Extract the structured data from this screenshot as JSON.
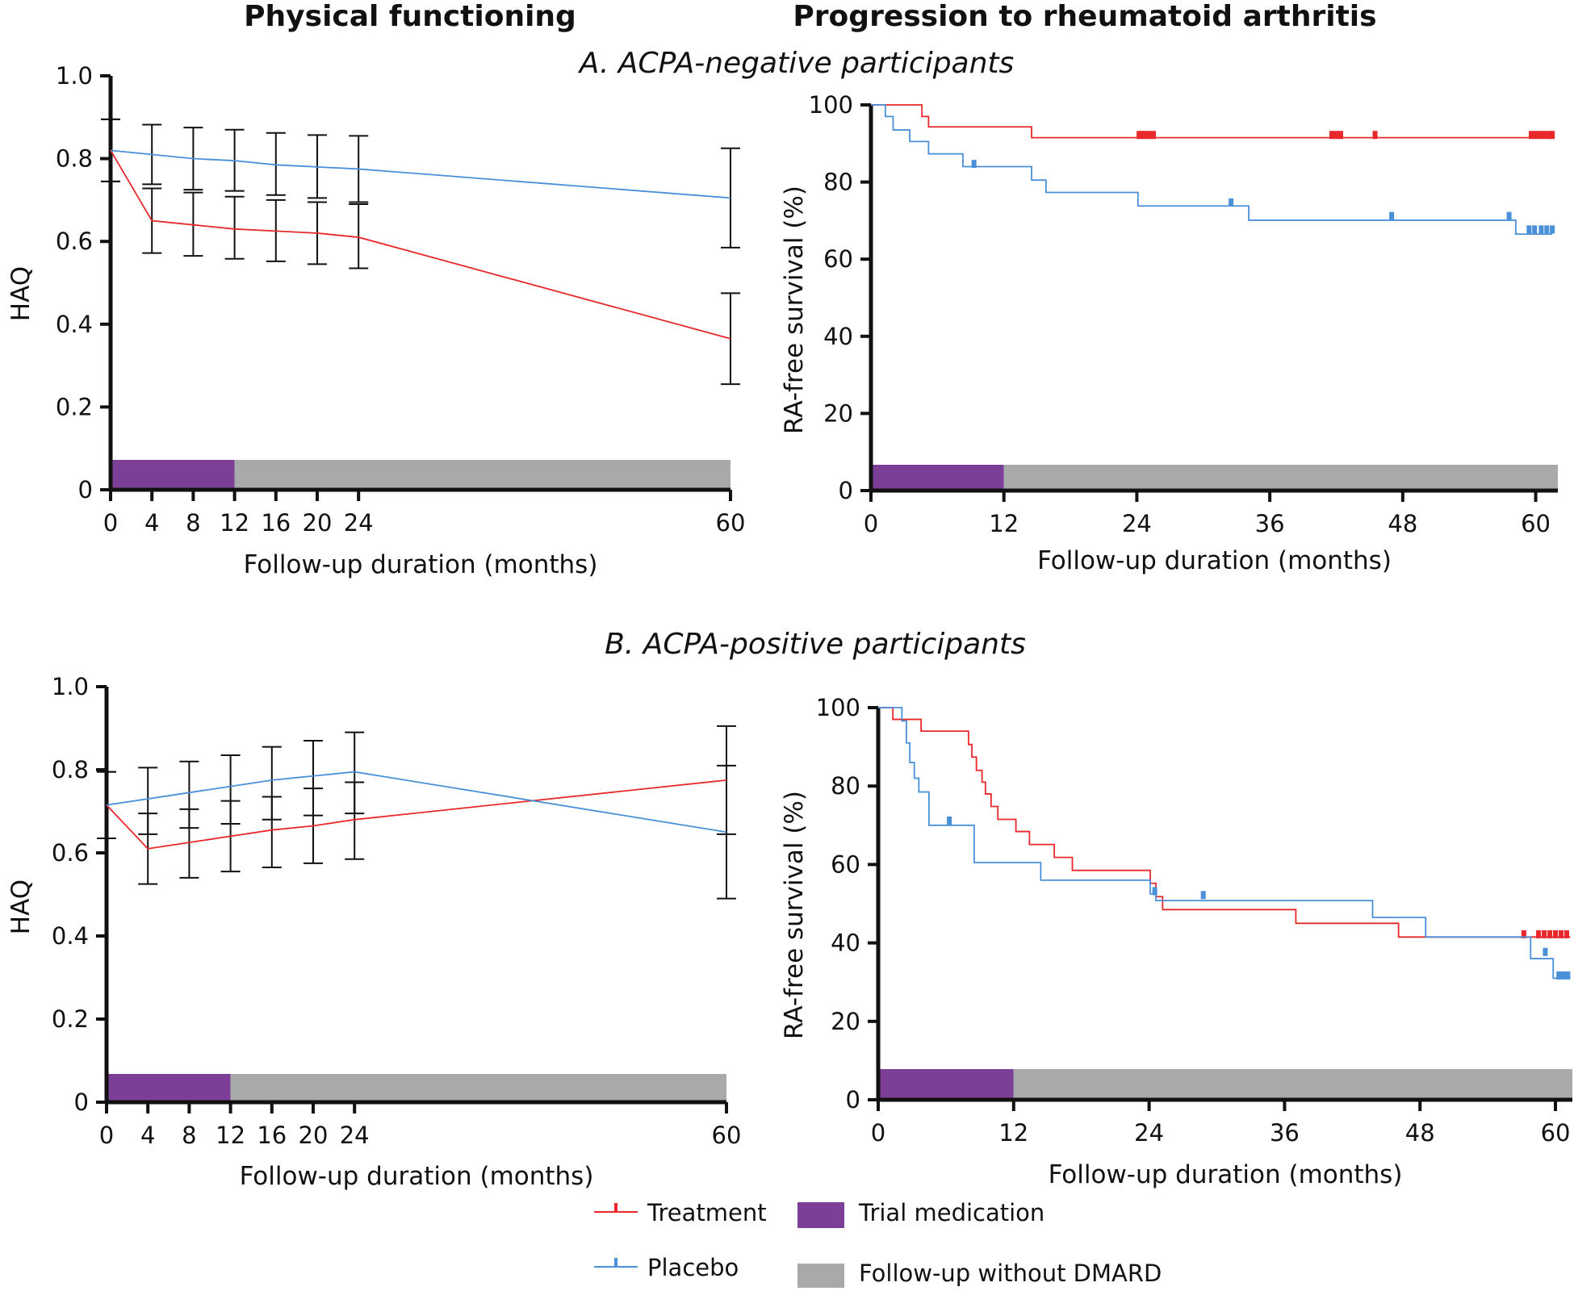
{
  "figure": {
    "col_titles": [
      "Physical functioning",
      "Progression to rheumatoid arthritis"
    ],
    "section_titles": [
      "A. ACPA-negative participants",
      "B. ACPA-positive participants"
    ]
  },
  "colors": {
    "treatment": "#e8282b",
    "placebo": "#4a90d9",
    "trial": "#7b3f98",
    "followup": "#a7a9aa",
    "axis": "#111111"
  },
  "legend": {
    "treatment": "Treatment",
    "placebo": "Placebo",
    "trial": "Trial medication",
    "followup": "Follow-up without DMARD"
  },
  "chart_data": [
    {
      "id": "haq-neg",
      "type": "line",
      "title": "Physical functioning",
      "section": "A. ACPA-negative participants",
      "xlabel": "Follow-up duration (months)",
      "ylabel": "HAQ",
      "xlim": [
        0,
        60
      ],
      "ylim": [
        0,
        1.0
      ],
      "x_ticks": [
        0,
        4,
        8,
        12,
        16,
        20,
        24,
        60
      ],
      "x_tick_labels": [
        "0",
        "4",
        "8",
        "12",
        "16",
        "20",
        "24",
        "60"
      ],
      "y_ticks": [
        0,
        0.2,
        0.4,
        0.6,
        0.8,
        1.0
      ],
      "y_tick_labels": [
        "0",
        "0.2",
        "0.4",
        "0.6",
        "0.8",
        "1.0"
      ],
      "x": [
        0,
        4,
        8,
        12,
        16,
        20,
        24,
        60
      ],
      "series": [
        {
          "name": "Treatment",
          "color_key": "treatment",
          "values": [
            0.82,
            0.65,
            0.64,
            0.63,
            0.625,
            0.62,
            0.61,
            0.365
          ],
          "lower": [
            0.745,
            0.572,
            0.565,
            0.558,
            0.552,
            0.545,
            0.535,
            0.255
          ],
          "upper": [
            0.895,
            0.728,
            0.718,
            0.708,
            0.7,
            0.695,
            0.69,
            0.475
          ]
        },
        {
          "name": "Placebo",
          "color_key": "placebo",
          "values": [
            0.82,
            0.81,
            0.8,
            0.795,
            0.785,
            0.78,
            0.775,
            0.705
          ],
          "lower": [
            0.745,
            0.738,
            0.725,
            0.722,
            0.712,
            0.705,
            0.695,
            0.585
          ],
          "upper": [
            0.895,
            0.882,
            0.875,
            0.87,
            0.862,
            0.857,
            0.855,
            0.825
          ]
        }
      ],
      "bars": {
        "trial": [
          0,
          12
        ],
        "followup": [
          12,
          60
        ]
      }
    },
    {
      "id": "km-neg",
      "type": "line",
      "step": true,
      "title": "Progression to rheumatoid arthritis",
      "section": "A. ACPA-negative participants",
      "xlabel": "Follow-up duration (months)",
      "ylabel": "RA-free survival (%)",
      "xlim": [
        0,
        62
      ],
      "ylim": [
        0,
        100
      ],
      "x_ticks": [
        0,
        12,
        24,
        36,
        48,
        60
      ],
      "x_tick_labels": [
        "0",
        "12",
        "24",
        "36",
        "48",
        "60"
      ],
      "y_ticks": [
        0,
        20,
        40,
        60,
        80,
        100
      ],
      "y_tick_labels": [
        "0",
        "20",
        "40",
        "60",
        "80",
        "100"
      ],
      "series": [
        {
          "name": "Treatment",
          "color_key": "treatment",
          "x": [
            0,
            4.6,
            5.2,
            14.5,
            61.5
          ],
          "y": [
            100,
            97,
            94.3,
            91.5,
            91.5
          ],
          "censored_x": [
            24.2,
            24.5,
            24.8,
            25.1,
            25.5,
            41.6,
            42,
            42.4,
            45.5,
            59.6,
            60,
            60.4,
            60.8,
            61.2,
            61.5
          ],
          "censored_y": [
            92,
            92,
            92,
            92,
            92,
            92,
            92,
            92,
            92,
            92,
            92,
            92,
            92,
            92,
            92
          ]
        },
        {
          "name": "Placebo",
          "color_key": "placebo",
          "x": [
            0,
            1.3,
            2,
            3.5,
            5.2,
            8.3,
            10.4,
            14.5,
            15.8,
            24.1,
            34.1,
            58.2,
            61.5
          ],
          "y": [
            100,
            97,
            93.5,
            90.5,
            87.3,
            84,
            84,
            80.5,
            77.3,
            73.8,
            70.1,
            66.5,
            66.5
          ],
          "censored_x": [
            9.3,
            32.5,
            47,
            57.6,
            59.4,
            59.9,
            60.5,
            61,
            61.5
          ],
          "censored_y": [
            84.5,
            74.5,
            71,
            71,
            67.5,
            67.5,
            67.5,
            67.5,
            67.5
          ]
        }
      ],
      "bars": {
        "trial": [
          0,
          12
        ],
        "followup": [
          12,
          62
        ]
      }
    },
    {
      "id": "haq-pos",
      "type": "line",
      "title": "Physical functioning",
      "section": "B. ACPA-positive participants",
      "xlabel": "Follow-up duration (months)",
      "ylabel": "HAQ",
      "xlim": [
        0,
        60
      ],
      "ylim": [
        0,
        1.0
      ],
      "x_ticks": [
        0,
        4,
        8,
        12,
        16,
        20,
        24,
        60
      ],
      "x_tick_labels": [
        "0",
        "4",
        "8",
        "12",
        "16",
        "20",
        "24",
        "60"
      ],
      "y_ticks": [
        0,
        0.2,
        0.4,
        0.6,
        0.8,
        1.0
      ],
      "y_tick_labels": [
        "0",
        "0.2",
        "0.4",
        "0.6",
        "0.8",
        "1.0"
      ],
      "x": [
        0,
        4,
        8,
        12,
        16,
        20,
        24,
        60
      ],
      "series": [
        {
          "name": "Treatment",
          "color_key": "treatment",
          "values": [
            0.715,
            0.61,
            0.625,
            0.64,
            0.655,
            0.665,
            0.68,
            0.775
          ],
          "lower": [
            0.635,
            0.525,
            0.54,
            0.555,
            0.565,
            0.575,
            0.585,
            0.645
          ],
          "upper": [
            0.795,
            0.695,
            0.705,
            0.725,
            0.735,
            0.755,
            0.77,
            0.905
          ]
        },
        {
          "name": "Placebo",
          "color_key": "placebo",
          "values": [
            0.715,
            0.73,
            0.745,
            0.76,
            0.775,
            0.785,
            0.795,
            0.65
          ],
          "lower": [
            0.635,
            0.645,
            0.66,
            0.67,
            0.68,
            0.69,
            0.695,
            0.49
          ],
          "upper": [
            0.795,
            0.805,
            0.82,
            0.835,
            0.855,
            0.87,
            0.89,
            0.81
          ]
        }
      ],
      "bars": {
        "trial": [
          0,
          12
        ],
        "followup": [
          12,
          60
        ]
      }
    },
    {
      "id": "km-pos",
      "type": "line",
      "step": true,
      "title": "Progression to rheumatoid arthritis",
      "section": "B. ACPA-positive participants",
      "xlabel": "Follow-up duration (months)",
      "ylabel": "RA-free survival (%)",
      "xlim": [
        0,
        61.5
      ],
      "ylim": [
        0,
        100
      ],
      "x_ticks": [
        0,
        12,
        24,
        36,
        48,
        60
      ],
      "x_tick_labels": [
        "0",
        "12",
        "24",
        "36",
        "48",
        "60"
      ],
      "y_ticks": [
        0,
        20,
        40,
        60,
        80,
        100
      ],
      "y_tick_labels": [
        "0",
        "20",
        "40",
        "60",
        "80",
        "100"
      ],
      "series": [
        {
          "name": "Treatment",
          "color_key": "treatment",
          "x": [
            0,
            1.3,
            3.8,
            8,
            8.3,
            8.7,
            9.2,
            9.5,
            10,
            10.6,
            11.2,
            12.2,
            13.4,
            15.2,
            15.6,
            16.4,
            17.2,
            24.1,
            24.6,
            25.2,
            37,
            43,
            46.1,
            58.1,
            61.3
          ],
          "y": [
            100,
            97,
            94,
            90.6,
            87.4,
            84,
            81,
            78,
            74.8,
            71.5,
            71.5,
            68.4,
            65.1,
            65.1,
            61.8,
            61.8,
            58.5,
            55.2,
            51.8,
            48.5,
            45,
            45,
            41.5,
            41.5,
            41.5
          ],
          "censored_x": [
            57.2,
            58.5,
            59,
            59.5,
            60,
            60.5,
            61
          ],
          "censored_y": [
            42,
            42,
            42,
            42,
            42,
            42,
            42
          ]
        },
        {
          "name": "Placebo",
          "color_key": "placebo",
          "x": [
            0,
            2.1,
            2.5,
            2.8,
            3.2,
            3.6,
            4.5,
            8.5,
            14.4,
            24.1,
            24.6,
            33.9,
            43.8,
            48.5,
            57.8,
            59.6,
            59.8,
            61.3
          ],
          "y": [
            100,
            96.6,
            91,
            86,
            82,
            78.5,
            70,
            60.5,
            56,
            52.5,
            50.8,
            50.8,
            46.5,
            41.5,
            36,
            36,
            31,
            31
          ],
          "censored_x": [
            6.3,
            24.5,
            28.8,
            59.1,
            60.3,
            60.7,
            61.1
          ],
          "censored_y": [
            71,
            53,
            52,
            37.5,
            31.5,
            31.5,
            31.5
          ]
        }
      ],
      "bars": {
        "trial": [
          0,
          12
        ],
        "followup": [
          12,
          61.5
        ]
      }
    }
  ]
}
